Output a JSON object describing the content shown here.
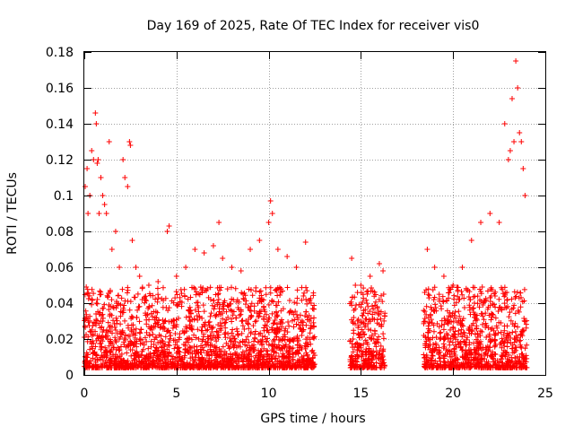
{
  "chart_data": {
    "type": "scatter",
    "title": "Day 169 of 2025, Rate Of TEC Index for receiver vis0",
    "xlabel": "GPS time / hours",
    "ylabel": "ROTI / TECUs",
    "xlim": [
      0,
      25
    ],
    "ylim": [
      0,
      0.18
    ],
    "x_ticks": [
      "0",
      "5",
      "10",
      "15",
      "20",
      "25"
    ],
    "y_ticks": [
      "0",
      "0.02",
      "0.04",
      "0.06",
      "0.08",
      "0.1",
      "0.12",
      "0.14",
      "0.16",
      "0.18"
    ],
    "grid": true,
    "marker": "+",
    "series": [
      {
        "name": "ROTI vis0",
        "color": "#ff0000",
        "data_gaps_hours": [
          [
            12.5,
            14.4
          ],
          [
            16.3,
            18.4
          ]
        ],
        "coverage_hours": [
          [
            0,
            12.5
          ],
          [
            14.4,
            16.3
          ],
          [
            18.4,
            24.0
          ]
        ],
        "x": [
          0.05,
          0.15,
          0.2,
          0.3,
          0.4,
          0.5,
          0.6,
          0.65,
          0.7,
          0.75,
          0.8,
          0.9,
          1.0,
          1.1,
          1.2,
          1.35,
          1.5,
          1.7,
          1.9,
          2.1,
          2.2,
          2.35,
          2.45,
          2.5,
          2.6,
          2.8,
          3.0,
          3.5,
          4.0,
          4.5,
          4.6,
          5.0,
          5.5,
          6.0,
          6.5,
          7.0,
          7.3,
          7.5,
          8.0,
          8.5,
          9.0,
          9.5,
          10.0,
          10.1,
          10.2,
          10.5,
          11.0,
          11.5,
          12.0,
          12.3,
          14.5,
          14.7,
          15.0,
          15.5,
          16.0,
          16.2,
          18.6,
          19.0,
          19.5,
          20.0,
          20.5,
          21.0,
          21.5,
          22.0,
          22.5,
          22.8,
          23.0,
          23.1,
          23.2,
          23.3,
          23.4,
          23.5,
          23.6,
          23.7,
          23.8,
          23.9
        ],
        "y": [
          0.105,
          0.115,
          0.09,
          0.1,
          0.125,
          0.12,
          0.146,
          0.14,
          0.118,
          0.12,
          0.09,
          0.11,
          0.1,
          0.095,
          0.09,
          0.13,
          0.07,
          0.08,
          0.06,
          0.12,
          0.11,
          0.105,
          0.13,
          0.128,
          0.075,
          0.06,
          0.055,
          0.05,
          0.052,
          0.08,
          0.083,
          0.055,
          0.06,
          0.07,
          0.068,
          0.072,
          0.085,
          0.065,
          0.06,
          0.058,
          0.07,
          0.075,
          0.085,
          0.097,
          0.09,
          0.07,
          0.066,
          0.06,
          0.074,
          0.04,
          0.065,
          0.05,
          0.05,
          0.055,
          0.062,
          0.058,
          0.07,
          0.06,
          0.055,
          0.05,
          0.06,
          0.075,
          0.085,
          0.09,
          0.085,
          0.14,
          0.12,
          0.125,
          0.154,
          0.13,
          0.175,
          0.16,
          0.135,
          0.13,
          0.115,
          0.1
        ]
      }
    ]
  }
}
